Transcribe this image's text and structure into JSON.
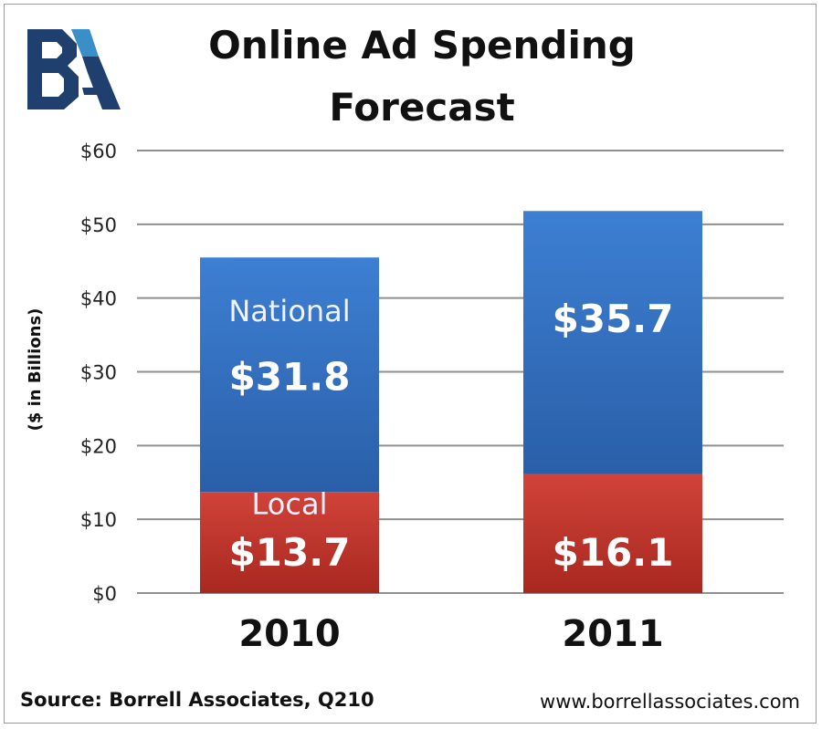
{
  "logo": {
    "text": "BA",
    "colors": {
      "dark": "#1f3f6e",
      "light": "#3b8fc8"
    }
  },
  "chart_data": {
    "type": "bar",
    "stacked": true,
    "title": "Online Ad Spending Forecast",
    "title_lines": [
      "Online Ad Spending",
      "Forecast"
    ],
    "ylabel": "($ in Billions)",
    "xlabel": "",
    "categories": [
      "2010",
      "2011"
    ],
    "ylim": [
      0,
      60
    ],
    "yticks": [
      0,
      10,
      20,
      30,
      40,
      50,
      60
    ],
    "ytick_labels": [
      "$0",
      "$10",
      "$20",
      "$30",
      "$40",
      "$50",
      "$60"
    ],
    "grid": true,
    "series": [
      {
        "name": "Local",
        "values": [
          13.7,
          16.1
        ],
        "labels": [
          "$13.7",
          "$16.1"
        ],
        "color": "#c0392b"
      },
      {
        "name": "National",
        "values": [
          31.8,
          35.7
        ],
        "labels": [
          "$31.8",
          "$35.7"
        ],
        "color": "#3a72c4"
      }
    ]
  },
  "footer": {
    "source": "Source: Borrell Associates, Q210",
    "url": "www.borrellassociates.com"
  }
}
